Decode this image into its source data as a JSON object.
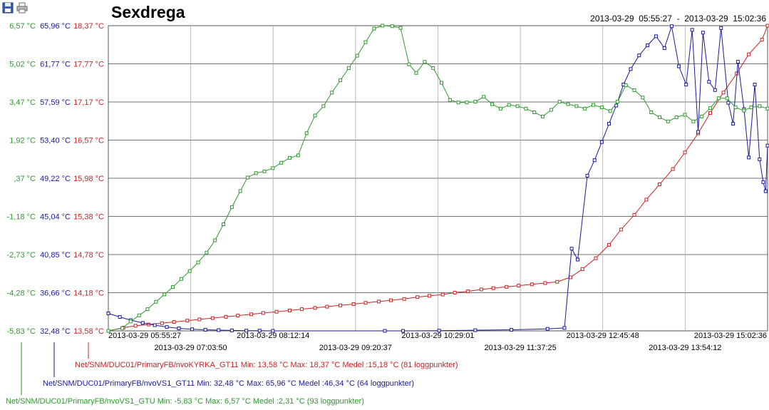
{
  "toolbar": {
    "save_icon": "save-icon",
    "print_icon": "print-icon"
  },
  "header": {
    "title": "Sexdrega",
    "range": "2013-03-29  05:55:27  -  2013-03-29  15:02:36"
  },
  "chart_data": {
    "type": "line",
    "title": "Sexdrega",
    "grid": true,
    "legend": "bottom-left",
    "x_axis": {
      "type": "time",
      "range": [
        "2013-03-29 05:55:27",
        "2013-03-29 15:02:36"
      ],
      "tick_labels": [
        "2013-03-29 05:55:27",
        "2013-03-29 07:03:50",
        "2013-03-29 08:12:14",
        "2013-03-29 09:20:37",
        "2013-03-29 10:29:01",
        "2013-03-29 11:37:25",
        "2013-03-29 12:45:48",
        "2013-03-29 13:54:12",
        "2013-03-29 15:02:36"
      ]
    },
    "y_axes": [
      {
        "color": "#2e9a2e",
        "unit": "°C",
        "ylim": [
          -5.83,
          6.57
        ],
        "tick_labels": [
          "6,57 °C",
          "5,02 °C",
          "3,47 °C",
          "1,92 °C",
          ",37 °C",
          "-1,18 °C",
          "-2,73 °C",
          "-4,28 °C",
          "-5,83 °C"
        ]
      },
      {
        "color": "#1a1a99",
        "unit": "°C",
        "ylim": [
          32.48,
          65.96
        ],
        "tick_labels": [
          "65,96 °C",
          "61,77 °C",
          "57,59 °C",
          "53,40 °C",
          "49,22 °C",
          "45,04 °C",
          "40,85 °C",
          "36,66 °C",
          "32,48 °C"
        ]
      },
      {
        "color": "#cc2222",
        "unit": "°C",
        "ylim": [
          13.58,
          18.37
        ],
        "tick_labels": [
          "18,37 °C",
          "17,77 °C",
          "17,17 °C",
          "16,57 °C",
          "15,98 °C",
          "15,38 °C",
          "14,78 °C",
          "14,18 °C",
          "13,58 °C"
        ]
      }
    ],
    "series": [
      {
        "name": "Net/SNM/DUC01/PrimaryFB/nvoKYRKA_GT11",
        "color": "#cc2222",
        "axis": 2,
        "legend": "Net/SNM/DUC01/PrimaryFB/nvoKYRKA_GT11  Min: 13,58 °C   Max: 18,37 °C   Medel :15,18 °C (81 loggpunkter)",
        "points": [
          [
            "2013-03-29 05:55:27",
            13.58
          ],
          [
            "2013-03-29 06:08:00",
            13.63
          ],
          [
            "2013-03-29 06:18:00",
            13.66
          ],
          [
            "2013-03-29 06:29:00",
            13.68
          ],
          [
            "2013-03-29 06:40:00",
            13.7
          ],
          [
            "2013-03-29 06:50:00",
            13.72
          ],
          [
            "2013-03-29 07:01:00",
            13.74
          ],
          [
            "2013-03-29 07:11:00",
            13.76
          ],
          [
            "2013-03-29 07:22:00",
            13.78
          ],
          [
            "2013-03-29 07:33:00",
            13.8
          ],
          [
            "2013-03-29 07:43:00",
            13.82
          ],
          [
            "2013-03-29 07:54:00",
            13.84
          ],
          [
            "2013-03-29 08:04:00",
            13.86
          ],
          [
            "2013-03-29 08:15:00",
            13.88
          ],
          [
            "2013-03-29 08:26:00",
            13.9
          ],
          [
            "2013-03-29 08:36:00",
            13.92
          ],
          [
            "2013-03-29 08:47:00",
            13.94
          ],
          [
            "2013-03-29 08:57:00",
            13.96
          ],
          [
            "2013-03-29 09:08:00",
            13.98
          ],
          [
            "2013-03-29 09:19:00",
            14.0
          ],
          [
            "2013-03-29 09:29:00",
            14.02
          ],
          [
            "2013-03-29 09:40:00",
            14.04
          ],
          [
            "2013-03-29 09:50:00",
            14.06
          ],
          [
            "2013-03-29 10:01:00",
            14.08
          ],
          [
            "2013-03-29 10:12:00",
            14.11
          ],
          [
            "2013-03-29 10:22:00",
            14.13
          ],
          [
            "2013-03-29 10:33:00",
            14.15
          ],
          [
            "2013-03-29 10:43:00",
            14.18
          ],
          [
            "2013-03-29 10:54:00",
            14.2
          ],
          [
            "2013-03-29 11:05:00",
            14.23
          ],
          [
            "2013-03-29 11:15:00",
            14.25
          ],
          [
            "2013-03-29 11:26:00",
            14.27
          ],
          [
            "2013-03-29 11:36:00",
            14.29
          ],
          [
            "2013-03-29 11:47:00",
            14.31
          ],
          [
            "2013-03-29 11:58:00",
            14.33
          ],
          [
            "2013-03-29 12:08:00",
            14.35
          ],
          [
            "2013-03-29 12:19:00",
            14.42
          ],
          [
            "2013-03-29 12:29:00",
            14.55
          ],
          [
            "2013-03-29 12:40:00",
            14.72
          ],
          [
            "2013-03-29 12:51:00",
            14.93
          ],
          [
            "2013-03-29 13:01:00",
            15.17
          ],
          [
            "2013-03-29 13:12:00",
            15.4
          ],
          [
            "2013-03-29 13:22:00",
            15.64
          ],
          [
            "2013-03-29 13:33:00",
            15.88
          ],
          [
            "2013-03-29 13:44:00",
            16.12
          ],
          [
            "2013-03-29 13:54:00",
            16.38
          ],
          [
            "2013-03-29 14:05:00",
            16.68
          ],
          [
            "2013-03-29 14:15:00",
            17.0
          ],
          [
            "2013-03-29 14:26:00",
            17.32
          ],
          [
            "2013-03-29 14:37:00",
            17.62
          ],
          [
            "2013-03-29 14:47:00",
            17.92
          ],
          [
            "2013-03-29 14:58:00",
            18.15
          ],
          [
            "2013-03-29 15:02:36",
            18.37
          ]
        ]
      },
      {
        "name": "Net/SNM/DUC01/PrimaryFB/nvoVS1_GT11",
        "color": "#1a1a99",
        "axis": 1,
        "legend": "Net/SNM/DUC01/PrimaryFB/nvoVS1_GT11  Min: 32,48 °C   Max: 65,96 °C   Medel :46,34 °C (64 loggpunkter)",
        "points": [
          [
            "2013-03-29 05:55:27",
            34.4
          ],
          [
            "2013-03-29 06:05:00",
            34.0
          ],
          [
            "2013-03-29 06:14:00",
            33.65
          ],
          [
            "2013-03-29 06:24:00",
            33.35
          ],
          [
            "2013-03-29 06:34:00",
            33.1
          ],
          [
            "2013-03-29 06:44:00",
            32.9
          ],
          [
            "2013-03-29 06:54:00",
            32.75
          ],
          [
            "2013-03-29 07:05:00",
            32.65
          ],
          [
            "2013-03-29 07:16:00",
            32.6
          ],
          [
            "2013-03-29 07:27:00",
            32.56
          ],
          [
            "2013-03-29 07:38:00",
            32.53
          ],
          [
            "2013-03-29 07:50:00",
            32.5
          ],
          [
            "2013-03-29 08:01:00",
            32.5
          ],
          [
            "2013-03-29 08:12:00",
            32.48
          ],
          [
            "2013-03-29 09:45:00",
            32.48
          ],
          [
            "2013-03-29 10:00:00",
            32.48
          ],
          [
            "2013-03-29 10:30:00",
            32.5
          ],
          [
            "2013-03-29 11:00:00",
            32.55
          ],
          [
            "2013-03-29 11:30:00",
            32.6
          ],
          [
            "2013-03-29 12:00:00",
            32.7
          ],
          [
            "2013-03-29 12:14:00",
            32.8
          ],
          [
            "2013-03-29 12:20:00",
            41.5
          ],
          [
            "2013-03-29 12:25:00",
            40.3
          ],
          [
            "2013-03-29 12:33:00",
            49.5
          ],
          [
            "2013-03-29 12:39:00",
            51.2
          ],
          [
            "2013-03-29 12:45:00",
            53.2
          ],
          [
            "2013-03-29 12:51:00",
            55.2
          ],
          [
            "2013-03-29 12:57:00",
            57.2
          ],
          [
            "2013-03-29 13:03:00",
            59.5
          ],
          [
            "2013-03-29 13:09:00",
            61.2
          ],
          [
            "2013-03-29 13:16:00",
            62.7
          ],
          [
            "2013-03-29 13:23:00",
            63.8
          ],
          [
            "2013-03-29 13:30:00",
            64.8
          ],
          [
            "2013-03-29 13:37:00",
            63.5
          ],
          [
            "2013-03-29 13:43:00",
            65.9
          ],
          [
            "2013-03-29 13:49:00",
            61.5
          ],
          [
            "2013-03-29 13:55:00",
            59.5
          ],
          [
            "2013-03-29 14:00:00",
            65.5
          ],
          [
            "2013-03-29 14:05:00",
            54.3
          ],
          [
            "2013-03-29 14:09:00",
            65.2
          ],
          [
            "2013-03-29 14:14:00",
            59.8
          ],
          [
            "2013-03-29 14:19:00",
            58.9
          ],
          [
            "2013-03-29 14:24:00",
            65.7
          ],
          [
            "2013-03-29 14:30:00",
            57.5
          ],
          [
            "2013-03-29 14:34:00",
            55.2
          ],
          [
            "2013-03-29 14:38:00",
            62.0
          ],
          [
            "2013-03-29 14:43:00",
            56.8
          ],
          [
            "2013-03-29 14:47:00",
            51.5
          ],
          [
            "2013-03-29 14:52:00",
            59.5
          ],
          [
            "2013-03-29 14:56:00",
            51.3
          ],
          [
            "2013-03-29 14:59:00",
            48.8
          ],
          [
            "2013-03-29 15:01:00",
            47.8
          ],
          [
            "2013-03-29 15:02:36",
            52.8
          ]
        ]
      },
      {
        "name": "Net/SNM/DUC01/PrimaryFB/nvoVS1_GTU",
        "color": "#2e9a2e",
        "axis": 0,
        "legend": "Net/SNM/DUC01/PrimaryFB/nvoVS1_GTU  Min: -5,83 °C   Max: 6,57 °C   Medel :2,31 °C (93 loggpunkter)",
        "points": [
          [
            "2013-03-29 05:55:27",
            -5.83
          ],
          [
            "2013-03-29 06:07:00",
            -5.72
          ],
          [
            "2013-03-29 06:14:00",
            -5.45
          ],
          [
            "2013-03-29 06:21:00",
            -5.2
          ],
          [
            "2013-03-29 06:28:00",
            -4.95
          ],
          [
            "2013-03-29 06:35:00",
            -4.65
          ],
          [
            "2013-03-29 06:42:00",
            -4.35
          ],
          [
            "2013-03-29 06:49:00",
            -4.05
          ],
          [
            "2013-03-29 06:56:00",
            -3.72
          ],
          [
            "2013-03-29 07:03:00",
            -3.4
          ],
          [
            "2013-03-29 07:10:00",
            -3.05
          ],
          [
            "2013-03-29 07:17:00",
            -2.65
          ],
          [
            "2013-03-29 07:24:00",
            -2.15
          ],
          [
            "2013-03-29 07:31:00",
            -1.5
          ],
          [
            "2013-03-29 07:38:00",
            -0.8
          ],
          [
            "2013-03-29 07:45:00",
            -0.15
          ],
          [
            "2013-03-29 07:51:00",
            0.4
          ],
          [
            "2013-03-29 07:58:00",
            0.58
          ],
          [
            "2013-03-29 08:05:00",
            0.65
          ],
          [
            "2013-03-29 08:12:00",
            0.78
          ],
          [
            "2013-03-29 08:19:00",
            1.0
          ],
          [
            "2013-03-29 08:26:00",
            1.2
          ],
          [
            "2013-03-29 08:33:00",
            1.3
          ],
          [
            "2013-03-29 08:40:00",
            2.2
          ],
          [
            "2013-03-29 08:47:00",
            2.92
          ],
          [
            "2013-03-29 08:54:00",
            3.3
          ],
          [
            "2013-03-29 09:01:00",
            3.85
          ],
          [
            "2013-03-29 09:08:00",
            4.35
          ],
          [
            "2013-03-29 09:15:00",
            4.85
          ],
          [
            "2013-03-29 09:22:00",
            5.35
          ],
          [
            "2013-03-29 09:29:00",
            5.9
          ],
          [
            "2013-03-29 09:36:00",
            6.45
          ],
          [
            "2013-03-29 09:43:00",
            6.57
          ],
          [
            "2013-03-29 09:51:00",
            6.55
          ],
          [
            "2013-03-29 09:58:00",
            6.48
          ],
          [
            "2013-03-29 10:05:00",
            5.0
          ],
          [
            "2013-03-29 10:11:00",
            4.65
          ],
          [
            "2013-03-29 10:18:00",
            5.1
          ],
          [
            "2013-03-29 10:25:00",
            4.85
          ],
          [
            "2013-03-29 10:32:00",
            4.25
          ],
          [
            "2013-03-29 10:39:00",
            3.55
          ],
          [
            "2013-03-29 10:46:00",
            3.45
          ],
          [
            "2013-03-29 10:53:00",
            3.45
          ],
          [
            "2013-03-29 11:00:00",
            3.48
          ],
          [
            "2013-03-29 11:07:00",
            3.68
          ],
          [
            "2013-03-29 11:14:00",
            3.38
          ],
          [
            "2013-03-29 11:21:00",
            3.2
          ],
          [
            "2013-03-29 11:28:00",
            3.35
          ],
          [
            "2013-03-29 11:35:00",
            3.3
          ],
          [
            "2013-03-29 11:42:00",
            3.2
          ],
          [
            "2013-03-29 11:49:00",
            3.05
          ],
          [
            "2013-03-29 11:56:00",
            2.88
          ],
          [
            "2013-03-29 12:03:00",
            3.15
          ],
          [
            "2013-03-29 12:10:00",
            3.48
          ],
          [
            "2013-03-29 12:17:00",
            3.38
          ],
          [
            "2013-03-29 12:24:00",
            3.3
          ],
          [
            "2013-03-29 12:31:00",
            3.2
          ],
          [
            "2013-03-29 12:38:00",
            3.35
          ],
          [
            "2013-03-29 12:45:00",
            3.25
          ],
          [
            "2013-03-29 12:52:00",
            3.1
          ],
          [
            "2013-03-29 12:58:00",
            3.48
          ],
          [
            "2013-03-29 13:05:00",
            4.15
          ],
          [
            "2013-03-29 13:12:00",
            3.95
          ],
          [
            "2013-03-29 13:19:00",
            3.65
          ],
          [
            "2013-03-29 13:26:00",
            3.05
          ],
          [
            "2013-03-29 13:33:00",
            2.85
          ],
          [
            "2013-03-29 13:40:00",
            2.68
          ],
          [
            "2013-03-29 13:47:00",
            2.85
          ],
          [
            "2013-03-29 13:54:00",
            2.95
          ],
          [
            "2013-03-29 14:01:00",
            2.68
          ],
          [
            "2013-03-29 14:08:00",
            2.88
          ],
          [
            "2013-03-29 14:15:00",
            3.22
          ],
          [
            "2013-03-29 14:22:00",
            3.62
          ],
          [
            "2013-03-29 14:29:00",
            3.62
          ],
          [
            "2013-03-29 14:36:00",
            3.25
          ],
          [
            "2013-03-29 14:43:00",
            3.12
          ],
          [
            "2013-03-29 14:49:00",
            3.25
          ],
          [
            "2013-03-29 14:56:00",
            3.3
          ],
          [
            "2013-03-29 15:02:36",
            3.2
          ]
        ]
      }
    ]
  }
}
